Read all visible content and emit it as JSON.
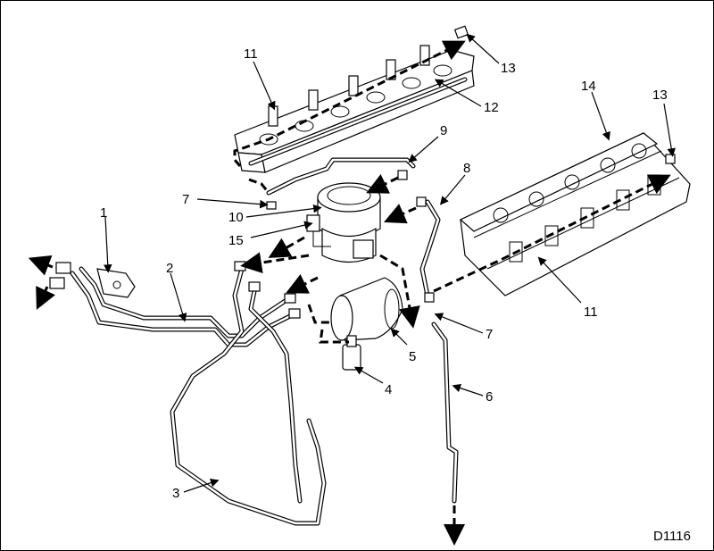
{
  "figure_id": "D1116",
  "callouts": {
    "c1": "1",
    "c2": "2",
    "c3": "3",
    "c4": "4",
    "c5": "5",
    "c6": "6",
    "c7a": "7",
    "c7b": "7",
    "c8": "8",
    "c9": "9",
    "c10": "10",
    "c11a": "11",
    "c11b": "11",
    "c12": "12",
    "c13a": "13",
    "c13b": "13",
    "c14": "14",
    "c15": "15"
  }
}
